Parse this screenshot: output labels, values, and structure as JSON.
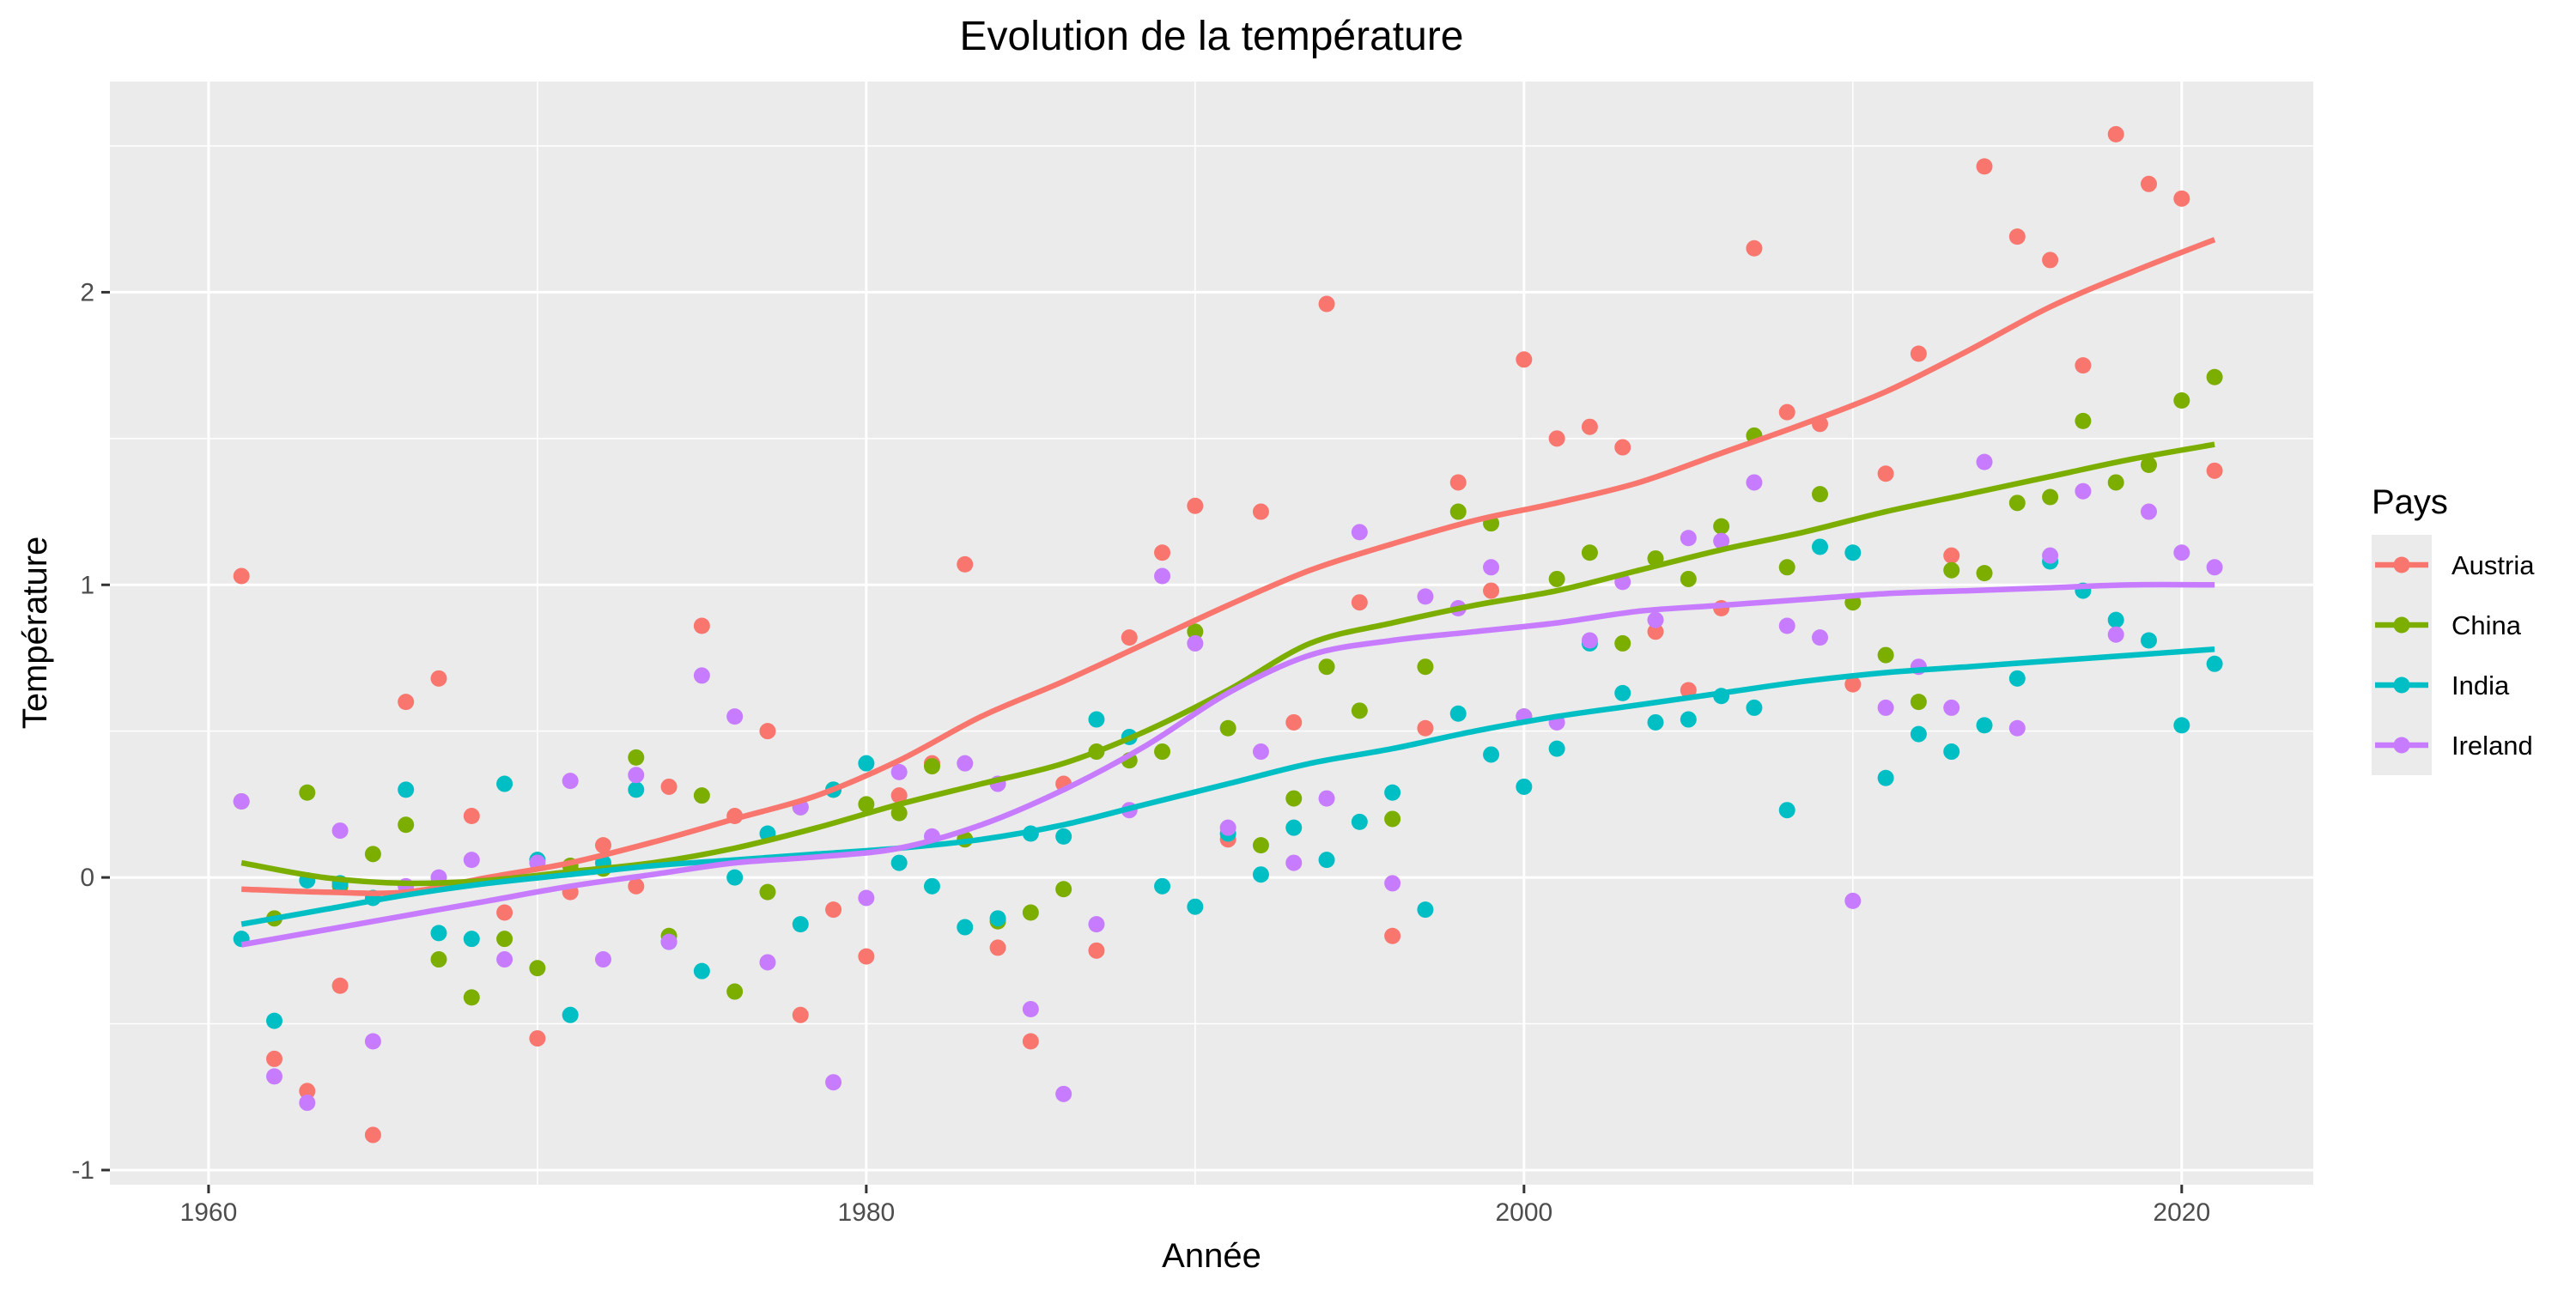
{
  "chart_data": {
    "type": "scatter",
    "title": "Evolution de la température",
    "xlabel": "Année",
    "ylabel": "Température",
    "xlim": [
      1957,
      2024
    ],
    "ylim": [
      -1.05,
      2.72
    ],
    "x_ticks": [
      1960,
      1980,
      2000,
      2020
    ],
    "x_tick_labels": [
      "1960",
      "1980",
      "2000",
      "2020"
    ],
    "y_ticks": [
      -1,
      0,
      1,
      2
    ],
    "y_tick_labels": [
      "-1",
      "0",
      "1",
      "2"
    ],
    "grid": true,
    "legend": {
      "title": "Pays",
      "position": "right"
    },
    "series": [
      {
        "name": "Austria",
        "color": "#F8766D",
        "x": [
          1961,
          1962,
          1963,
          1964,
          1965,
          1966,
          1967,
          1968,
          1969,
          1970,
          1971,
          1972,
          1973,
          1974,
          1975,
          1976,
          1977,
          1978,
          1979,
          1980,
          1981,
          1982,
          1983,
          1984,
          1985,
          1986,
          1987,
          1988,
          1989,
          1990,
          1991,
          1992,
          1993,
          1994,
          1995,
          1996,
          1997,
          1998,
          1999,
          2000,
          2001,
          2002,
          2003,
          2004,
          2005,
          2006,
          2007,
          2008,
          2009,
          2010,
          2011,
          2012,
          2013,
          2014,
          2015,
          2016,
          2017,
          2018,
          2019,
          2020,
          2021
        ],
        "values": [
          1.03,
          -0.62,
          -0.73,
          -0.37,
          -0.88,
          0.6,
          0.68,
          0.21,
          -0.12,
          -0.55,
          -0.05,
          0.11,
          -0.03,
          0.31,
          0.86,
          0.21,
          0.5,
          -0.47,
          -0.11,
          -0.27,
          0.28,
          0.39,
          1.07,
          -0.24,
          -0.56,
          0.32,
          -0.25,
          0.82,
          1.11,
          1.27,
          0.13,
          1.25,
          0.53,
          1.96,
          0.94,
          -0.2,
          0.51,
          1.35,
          0.98,
          1.77,
          1.5,
          1.54,
          1.47,
          0.84,
          0.64,
          0.92,
          2.15,
          1.59,
          1.55,
          0.66,
          1.38,
          1.79,
          1.1,
          2.43,
          2.19,
          2.11,
          1.75,
          2.54,
          2.37,
          2.32,
          1.39
        ],
        "smooth": [
          -0.04,
          -0.05,
          -0.05,
          0.0,
          0.05,
          0.12,
          0.2,
          0.28,
          0.4,
          0.55,
          0.67,
          0.8,
          0.93,
          1.05,
          1.14,
          1.22,
          1.28,
          1.35,
          1.45,
          1.55,
          1.66,
          1.8,
          1.95,
          2.07,
          2.18
        ]
      },
      {
        "name": "China",
        "color": "#7CAE00",
        "x": [
          1961,
          1962,
          1963,
          1964,
          1965,
          1966,
          1967,
          1968,
          1969,
          1970,
          1971,
          1972,
          1973,
          1974,
          1975,
          1976,
          1977,
          1978,
          1979,
          1980,
          1981,
          1982,
          1983,
          1984,
          1985,
          1986,
          1987,
          1988,
          1989,
          1990,
          1991,
          1992,
          1993,
          1994,
          1995,
          1996,
          1997,
          1998,
          1999,
          2000,
          2001,
          2002,
          2003,
          2004,
          2005,
          2006,
          2007,
          2008,
          2009,
          2010,
          2011,
          2012,
          2013,
          2014,
          2015,
          2016,
          2017,
          2018,
          2019,
          2020,
          2021
        ],
        "values": [
          0.26,
          -0.14,
          0.29,
          -0.03,
          0.08,
          0.18,
          -0.28,
          -0.41,
          -0.21,
          -0.31,
          0.04,
          0.03,
          0.41,
          -0.2,
          0.28,
          -0.39,
          -0.05,
          0.24,
          0.3,
          0.25,
          0.22,
          0.38,
          0.13,
          -0.15,
          -0.12,
          -0.04,
          0.43,
          0.4,
          0.43,
          0.84,
          0.51,
          0.11,
          0.27,
          0.72,
          0.57,
          0.2,
          0.72,
          1.25,
          1.21,
          0.55,
          1.02,
          1.11,
          0.8,
          1.09,
          1.02,
          1.2,
          1.51,
          1.06,
          1.31,
          0.94,
          0.76,
          0.6,
          1.05,
          1.04,
          1.28,
          1.3,
          1.56,
          1.35,
          1.41,
          1.63,
          1.71
        ],
        "smooth": [
          0.05,
          0.0,
          -0.02,
          -0.01,
          0.02,
          0.05,
          0.1,
          0.17,
          0.25,
          0.32,
          0.39,
          0.5,
          0.64,
          0.8,
          0.87,
          0.93,
          0.98,
          1.05,
          1.12,
          1.18,
          1.25,
          1.31,
          1.37,
          1.43,
          1.48
        ]
      },
      {
        "name": "India",
        "color": "#00BFC4",
        "x": [
          1961,
          1962,
          1963,
          1964,
          1965,
          1966,
          1967,
          1968,
          1969,
          1970,
          1971,
          1972,
          1973,
          1974,
          1975,
          1976,
          1977,
          1978,
          1979,
          1980,
          1981,
          1982,
          1983,
          1984,
          1985,
          1986,
          1987,
          1988,
          1989,
          1990,
          1991,
          1992,
          1993,
          1994,
          1995,
          1996,
          1997,
          1998,
          1999,
          2000,
          2001,
          2002,
          2003,
          2004,
          2005,
          2006,
          2007,
          2008,
          2009,
          2010,
          2011,
          2012,
          2013,
          2014,
          2015,
          2016,
          2017,
          2018,
          2019,
          2020,
          2021
        ],
        "values": [
          -0.21,
          -0.49,
          -0.01,
          -0.02,
          -0.07,
          0.3,
          -0.19,
          -0.21,
          0.32,
          0.06,
          -0.47,
          0.05,
          0.3,
          -0.22,
          -0.32,
          0.0,
          0.15,
          -0.16,
          0.3,
          0.39,
          0.05,
          -0.03,
          -0.17,
          -0.14,
          0.15,
          0.14,
          0.54,
          0.48,
          -0.03,
          -0.1,
          0.15,
          0.01,
          0.17,
          0.06,
          0.19,
          0.29,
          -0.11,
          0.56,
          0.42,
          0.31,
          0.44,
          0.8,
          0.63,
          0.53,
          0.54,
          0.62,
          0.58,
          0.23,
          1.13,
          1.11,
          0.34,
          0.49,
          0.43,
          0.52,
          0.68,
          1.08,
          0.98,
          0.88,
          0.81,
          0.52,
          0.73
        ],
        "smooth": [
          -0.16,
          -0.11,
          -0.06,
          -0.02,
          0.01,
          0.04,
          0.06,
          0.08,
          0.1,
          0.13,
          0.18,
          0.25,
          0.32,
          0.39,
          0.44,
          0.5,
          0.55,
          0.59,
          0.63,
          0.67,
          0.7,
          0.72,
          0.74,
          0.76,
          0.78
        ]
      },
      {
        "name": "Ireland",
        "color": "#C77CFF",
        "x": [
          1961,
          1962,
          1963,
          1964,
          1965,
          1966,
          1967,
          1968,
          1969,
          1970,
          1971,
          1972,
          1973,
          1974,
          1975,
          1976,
          1977,
          1978,
          1979,
          1980,
          1981,
          1982,
          1983,
          1984,
          1985,
          1986,
          1987,
          1988,
          1989,
          1990,
          1991,
          1992,
          1993,
          1994,
          1995,
          1996,
          1997,
          1998,
          1999,
          2000,
          2001,
          2002,
          2003,
          2004,
          2005,
          2006,
          2007,
          2008,
          2009,
          2010,
          2011,
          2012,
          2013,
          2014,
          2015,
          2016,
          2017,
          2018,
          2019,
          2020,
          2021
        ],
        "values": [
          0.26,
          -0.68,
          -0.77,
          0.16,
          -0.56,
          -0.03,
          0.0,
          0.06,
          -0.28,
          0.05,
          0.33,
          -0.28,
          0.35,
          -0.22,
          0.69,
          0.55,
          -0.29,
          0.24,
          -0.7,
          -0.07,
          0.36,
          0.14,
          0.39,
          0.32,
          -0.45,
          -0.74,
          -0.16,
          0.23,
          1.03,
          0.8,
          0.17,
          0.43,
          0.05,
          0.27,
          1.18,
          -0.02,
          0.96,
          0.92,
          1.06,
          0.55,
          0.53,
          0.81,
          1.01,
          0.88,
          1.16,
          1.15,
          1.35,
          0.86,
          0.82,
          -0.08,
          0.58,
          0.72,
          0.58,
          1.42,
          0.51,
          1.1,
          1.32,
          0.83,
          1.25,
          1.11,
          1.06
        ],
        "smooth": [
          -0.23,
          -0.18,
          -0.13,
          -0.08,
          -0.03,
          0.01,
          0.05,
          0.07,
          0.1,
          0.18,
          0.3,
          0.45,
          0.63,
          0.76,
          0.81,
          0.84,
          0.87,
          0.91,
          0.93,
          0.95,
          0.97,
          0.98,
          0.99,
          1.0,
          1.0
        ]
      }
    ],
    "smooth_x": [
      1961,
      1963.5,
      1966,
      1968.5,
      1971,
      1973.5,
      1976,
      1978.5,
      1981,
      1983.5,
      1986,
      1988.5,
      1991,
      1993.5,
      1996,
      1998.5,
      2001,
      2003.5,
      2006,
      2008.5,
      2011,
      2013.5,
      2016,
      2018.5,
      2021
    ]
  }
}
